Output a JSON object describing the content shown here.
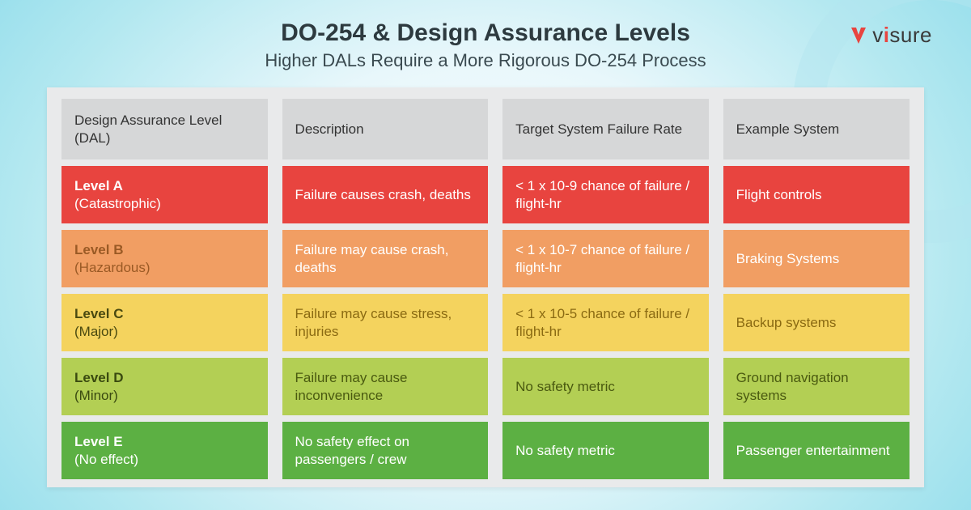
{
  "brand": {
    "name": "visure",
    "brand_color": "#e8443f",
    "text_color": "#3a3a3a"
  },
  "title": "DO-254 & Design Assurance Levels",
  "subtitle": "Higher DALs Require a More Rigorous DO-254 Process",
  "background": {
    "center_color": "#ffffff",
    "mid_color": "#e8f7fb",
    "outer_color": "#7ed6e8",
    "panel_color": "#e9eaeb",
    "header_cell_color": "#d6d7d8"
  },
  "columns": [
    "Design Assurance Level (DAL)",
    "Description",
    "Target System Failure Rate",
    "Example System"
  ],
  "rows": [
    {
      "level": "Level A",
      "qualifier": "(Catastrophic)",
      "description": "Failure causes crash, deaths",
      "failure_rate": "< 1 x 10-9 chance of failure / flight-hr",
      "example": "Flight controls",
      "bg": "#e8443f",
      "fg": "#ffffff",
      "level_fg": "#ffffff"
    },
    {
      "level": "Level B",
      "qualifier": "(Hazardous)",
      "description": "Failure may cause crash, deaths",
      "failure_rate": "< 1 x 10-7 chance of failure / flight-hr",
      "example": "Braking Systems",
      "bg": "#f19e63",
      "fg": "#ffffff",
      "level_fg": "#9a5a25"
    },
    {
      "level": "Level C",
      "qualifier": "(Major)",
      "description": "Failure may cause stress, injuries",
      "failure_rate": "< 1 x 10-5 chance of failure / flight-hr",
      "example": "Backup systems",
      "bg": "#f4d35e",
      "fg": "#8a6a12",
      "level_fg": "#4a4a10"
    },
    {
      "level": "Level D",
      "qualifier": "(Minor)",
      "description": "Failure may cause inconvenience",
      "failure_rate": "No safety metric",
      "example": "Ground navigation systems",
      "bg": "#b3cf54",
      "fg": "#4a5a10",
      "level_fg": "#3a4a10"
    },
    {
      "level": "Level E",
      "qualifier": "(No effect)",
      "description": "No safety effect on passengers / crew",
      "failure_rate": "No safety metric",
      "example": "Passenger entertainment",
      "bg": "#5cb043",
      "fg": "#ffffff",
      "level_fg": "#ffffff"
    }
  ]
}
